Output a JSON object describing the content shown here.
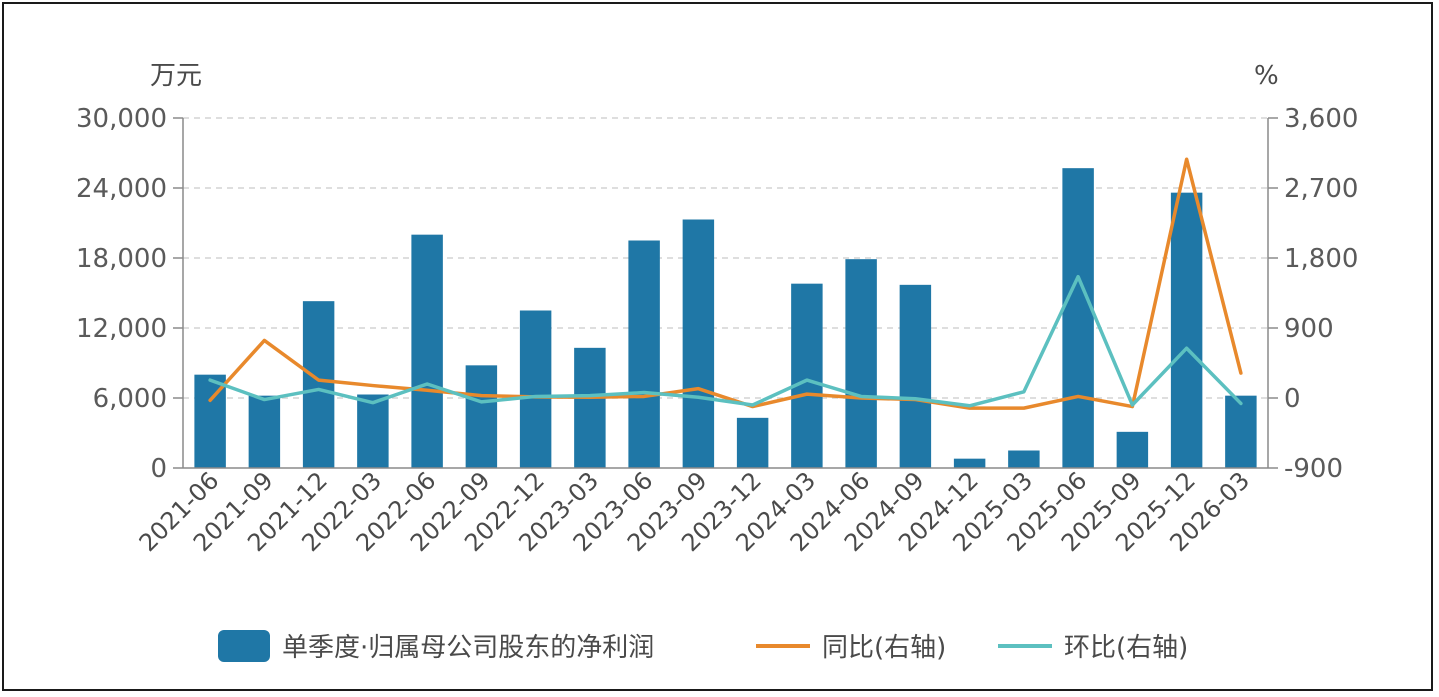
{
  "chart_data": {
    "type": "bar",
    "left_unit": "万元",
    "right_unit": "%",
    "categories": [
      "2021-06",
      "2021-09",
      "2021-12",
      "2022-03",
      "2022-06",
      "2022-09",
      "2022-12",
      "2023-03",
      "2023-06",
      "2023-09",
      "2023-12",
      "2024-03",
      "2024-06",
      "2024-09",
      "2024-12",
      "2025-03",
      "2025-06",
      "2025-09",
      "2025-12",
      "2026-03"
    ],
    "left_ticks": [
      "0",
      "6,000",
      "12,000",
      "18,000",
      "24,000",
      "30,000"
    ],
    "right_ticks": [
      "-900",
      "0",
      "900",
      "1,800",
      "2,700",
      "3,600"
    ],
    "ylim_left": [
      0,
      30000
    ],
    "ylim_right": [
      -900,
      3600
    ],
    "grid": true,
    "legend_position": "bottom",
    "series": [
      {
        "name": "单季度·归属母公司股东的净利润",
        "kind": "bar",
        "axis": "left",
        "color": "#1f77a6",
        "values": [
          8000,
          6200,
          14300,
          6300,
          20000,
          8800,
          13500,
          10300,
          19500,
          21300,
          4300,
          15800,
          17900,
          15700,
          800,
          1500,
          25700,
          3100,
          23600,
          6200
        ]
      },
      {
        "name": "同比(右轴)",
        "kind": "line",
        "axis": "right",
        "color": "#e8892c",
        "values": [
          -30,
          740,
          230,
          160,
          100,
          30,
          15,
          10,
          20,
          120,
          -110,
          50,
          0,
          -20,
          -130,
          -130,
          20,
          -110,
          3070,
          320
        ]
      },
      {
        "name": "环比(右轴)",
        "kind": "line",
        "axis": "right",
        "color": "#5cc0c0",
        "values": [
          230,
          -20,
          110,
          -60,
          180,
          -50,
          20,
          30,
          70,
          10,
          -90,
          230,
          20,
          -10,
          -100,
          80,
          1560,
          -90,
          640,
          -70
        ]
      }
    ]
  }
}
